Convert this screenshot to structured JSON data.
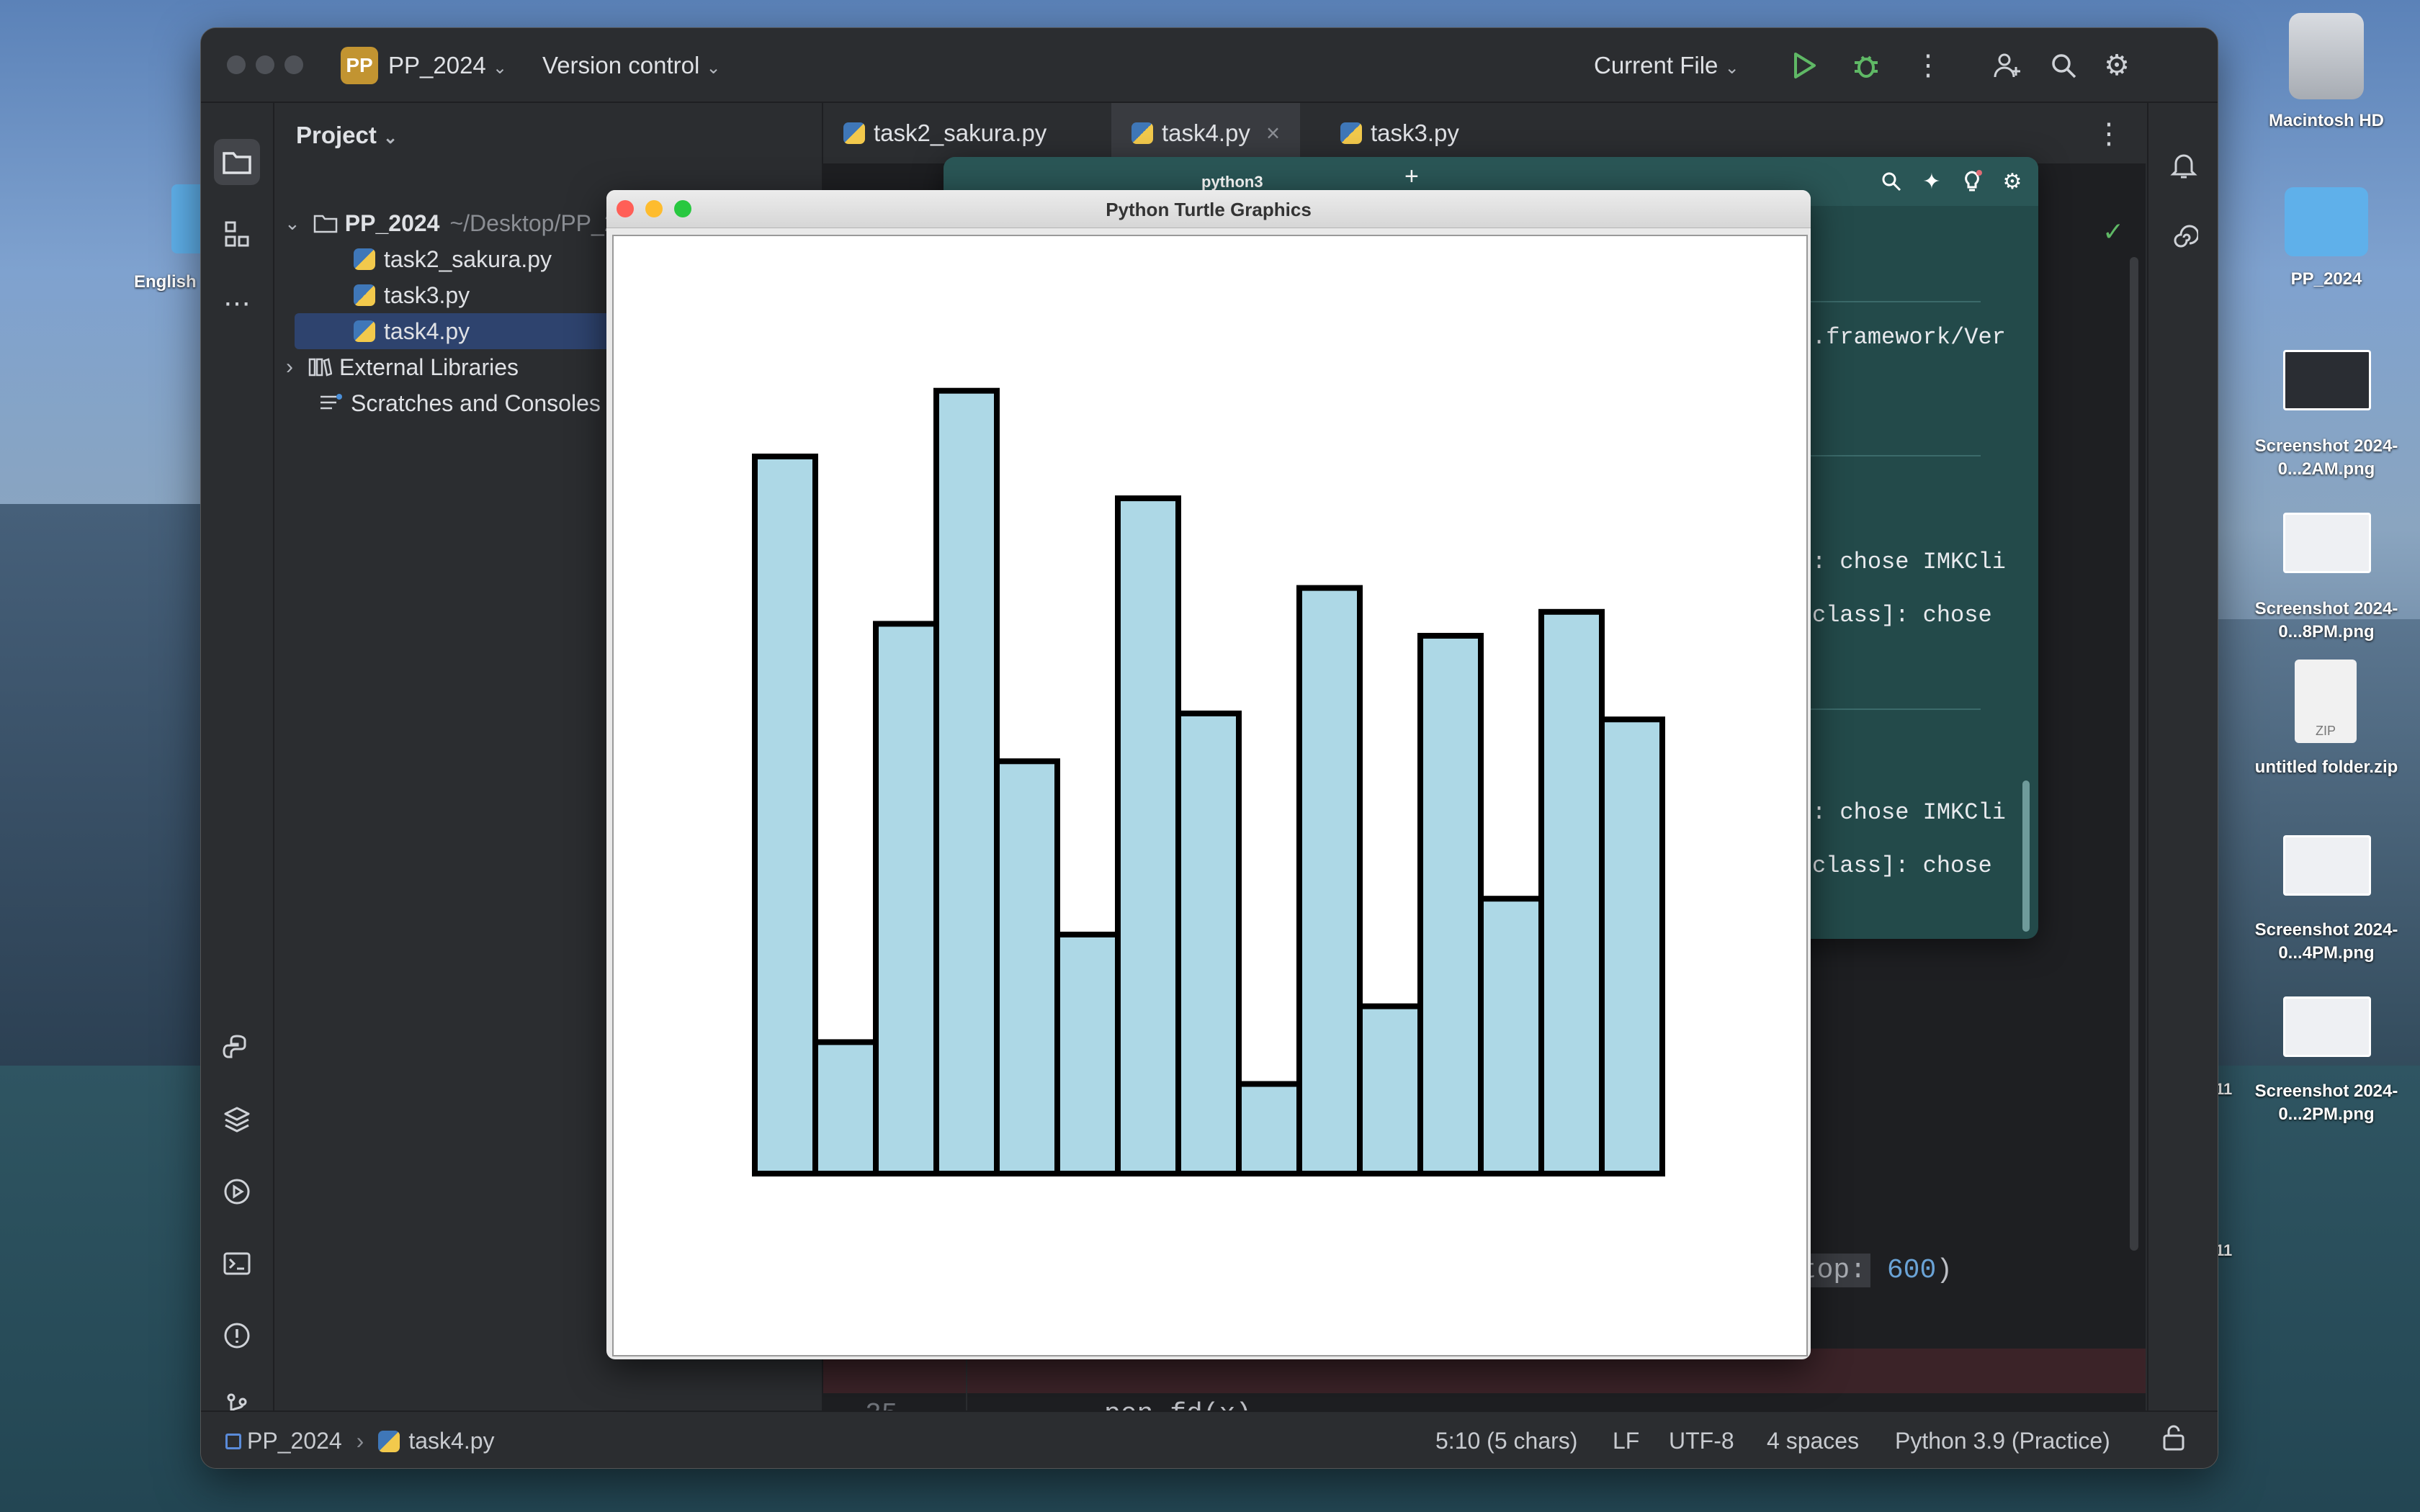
{
  "desktop": {
    "left_label": "English",
    "icons": [
      {
        "label": "Macintosh HD"
      },
      {
        "label": "PP_2024"
      },
      {
        "label": "Screenshot 2024-0...2AM.png"
      },
      {
        "label": "Screenshot 2024-0...8PM.png"
      },
      {
        "label": "untitled folder.zip"
      },
      {
        "label": "Screenshot 2024-0...4PM.png"
      },
      {
        "label": "Screenshot 2024-0...2PM.png"
      }
    ],
    "zip_tag": "ZIP",
    "edge_marks": [
      "11",
      "11"
    ]
  },
  "ide": {
    "project_badge": "PP",
    "project_name": "PP_2024",
    "version_control": "Version control",
    "run_config": "Current File",
    "project_panel_title": "Project",
    "tree": {
      "root_name": "PP_2024",
      "root_path": "~/Desktop/PP_2024",
      "files": [
        "task2_sakura.py",
        "task3.py",
        "task4.py"
      ],
      "external": "External Libraries",
      "scratches": "Scratches and Consoles"
    },
    "tabs": [
      "task2_sakura.py",
      "task4.py",
      "task3.py"
    ],
    "active_tab": "task4.py",
    "code_fragment": "stop: 600)",
    "code_param_value": "600",
    "line_number": "25",
    "code_line": "pen.fd(x)",
    "status": {
      "breadcrumb_project": "PP_2024",
      "breadcrumb_file": "task4.py",
      "position": "5:10 (5 chars)",
      "line_ending": "LF",
      "encoding": "UTF-8",
      "indent": "4 spaces",
      "interpreter": "Python 3.9 (Practice)"
    }
  },
  "run_window": {
    "title": "python3",
    "lines": [
      ".framework/Ver",
      ": chose IMKCli",
      "class]: chose",
      ": chose IMKCli",
      "class]: chose"
    ]
  },
  "turtle_window": {
    "title": "Python Turtle Graphics"
  },
  "chart_data": {
    "type": "bar",
    "title": "",
    "xlabel": "",
    "ylabel": "",
    "bar_color": "#add8e6",
    "edge_color": "#000000",
    "values": [
      600,
      110,
      460,
      655,
      345,
      200,
      565,
      385,
      75,
      490,
      140,
      450,
      230,
      470,
      380
    ],
    "ylim": [
      0,
      700
    ],
    "grid": false,
    "legend": "none"
  }
}
